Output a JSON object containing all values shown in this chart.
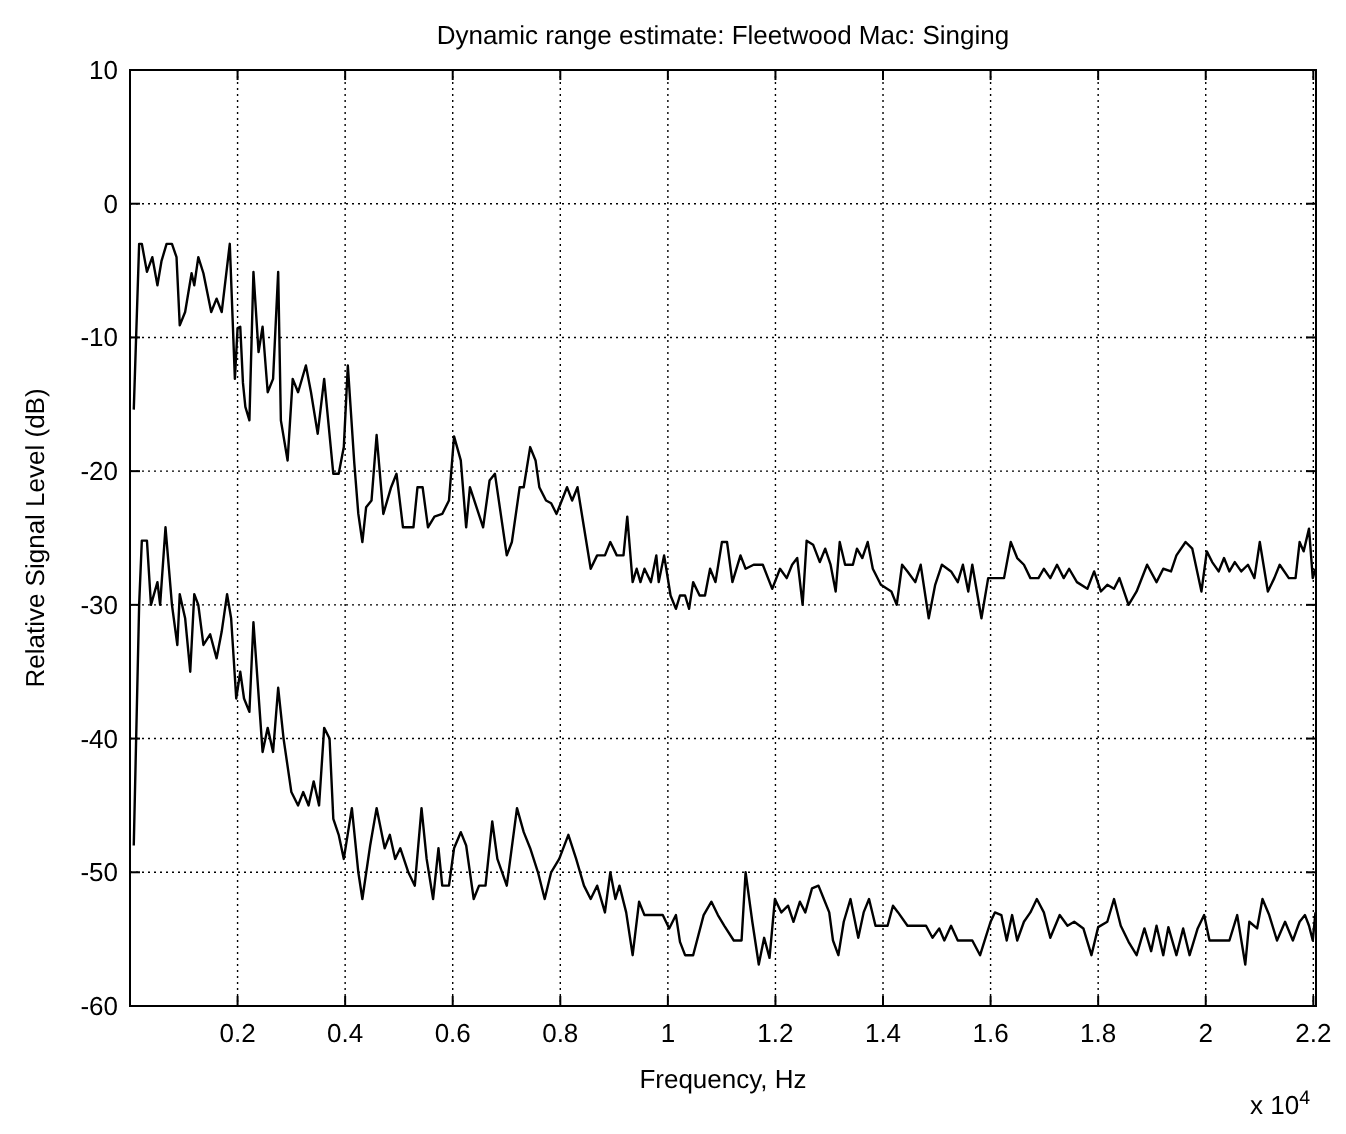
{
  "chart_data": {
    "type": "line",
    "title": "Dynamic range estimate: Fleetwood Mac: Singing",
    "xlabel": "Frequency, Hz",
    "ylabel": "Relative Signal Level (dB)",
    "annotations": [
      "x 10$^{4}$"
    ],
    "xlim": [
      0,
      2.205
    ],
    "ylim": [
      -60,
      10
    ],
    "xticks": [
      0.2,
      0.4,
      0.6,
      0.8,
      1,
      1.2,
      1.4,
      1.6,
      1.8,
      2,
      2.2
    ],
    "yticks": [
      -60,
      -50,
      -40,
      -30,
      -20,
      -10,
      0,
      10
    ],
    "grid": true,
    "line_style": "solid",
    "series": [
      {
        "color": "#000000",
        "x": [
          0.007,
          0.017,
          0.022,
          0.0315,
          0.0415,
          0.051,
          0.0585,
          0.068,
          0.078,
          0.0865,
          0.0925,
          0.1025,
          0.1145,
          0.1195,
          0.127,
          0.1365,
          0.151,
          0.161,
          0.1705,
          0.1855,
          0.195,
          0.2,
          0.205,
          0.21,
          0.2145,
          0.222,
          0.2295,
          0.239,
          0.2465,
          0.256,
          0.266,
          0.2755,
          0.2805,
          0.293,
          0.3025,
          0.3125,
          0.327,
          0.3365,
          0.349,
          0.361,
          0.378,
          0.388,
          0.3975,
          0.405,
          0.417,
          0.4245,
          0.432,
          0.439,
          0.449,
          0.4585,
          0.471,
          0.4855,
          0.4955,
          0.5075,
          0.527,
          0.5345,
          0.544,
          0.554,
          0.566,
          0.5805,
          0.593,
          0.6025,
          0.615,
          0.625,
          0.632,
          0.6565,
          0.6685,
          0.6785,
          0.7005,
          0.71,
          0.7245,
          0.732,
          0.744,
          0.754,
          0.761,
          0.7735,
          0.783,
          0.793,
          0.8125,
          0.822,
          0.832,
          0.844,
          0.8565,
          0.8685,
          0.883,
          0.893,
          0.905,
          0.9175,
          0.9245,
          0.9345,
          0.942,
          0.949,
          0.9565,
          0.9685,
          0.9785,
          0.983,
          0.993,
          1.005,
          1.015,
          1.0225,
          1.032,
          1.0395,
          1.047,
          1.059,
          1.069,
          1.0785,
          1.0885,
          1.1005,
          1.11,
          1.12,
          1.135,
          1.1445,
          1.1595,
          1.1765,
          1.194,
          1.2085,
          1.221,
          1.231,
          1.2405,
          1.2505,
          1.258,
          1.27,
          1.2825,
          1.2925,
          1.3025,
          1.312,
          1.3195,
          1.3295,
          1.344,
          1.3515,
          1.3615,
          1.3715,
          1.381,
          1.396,
          1.4155,
          1.4255,
          1.4355,
          1.4455,
          1.46,
          1.47,
          1.485,
          1.497,
          1.5095,
          1.5265,
          1.539,
          1.5485,
          1.5585,
          1.566,
          1.583,
          1.5955,
          1.625,
          1.6375,
          1.6495,
          1.662,
          1.674,
          1.689,
          1.699,
          1.711,
          1.7235,
          1.736,
          1.746,
          1.7605,
          1.78,
          1.7925,
          1.805,
          1.817,
          1.8295,
          1.8395,
          1.8565,
          1.8715,
          1.891,
          1.9085,
          1.921,
          1.9355,
          1.9455,
          1.9625,
          1.975,
          1.992,
          2.002,
          2.012,
          2.024,
          2.034,
          2.044,
          2.054,
          2.066,
          2.0785,
          2.0905,
          2.1005,
          2.1155,
          2.1275,
          2.1375,
          2.1545,
          2.167,
          2.1745,
          2.182,
          2.192,
          2.199,
          2.204
        ],
        "values": [
          -15.4,
          -3,
          -3,
          -5.1,
          -4,
          -6.1,
          -4.3,
          -3,
          -3,
          -4,
          -9.1,
          -8.1,
          -5.2,
          -6.1,
          -4,
          -5.2,
          -8.1,
          -7.1,
          -8.1,
          -3,
          -13.1,
          -9.3,
          -9.2,
          -13.4,
          -15.2,
          -16.2,
          -5.1,
          -11.1,
          -9.2,
          -14.1,
          -13.1,
          -5.1,
          -16.2,
          -19.2,
          -13.1,
          -14.1,
          -12.1,
          -14.1,
          -17.2,
          -13.1,
          -20.2,
          -20.2,
          -18.2,
          -12.1,
          -19.4,
          -23.2,
          -25.3,
          -22.7,
          -22.2,
          -17.3,
          -23.2,
          -21.2,
          -20.2,
          -24.2,
          -24.2,
          -21.2,
          -21.2,
          -24.2,
          -23.4,
          -23.2,
          -22.2,
          -17.4,
          -19.2,
          -24.2,
          -21.2,
          -24.2,
          -20.7,
          -20.2,
          -26.3,
          -25.3,
          -21.2,
          -21.2,
          -18.2,
          -19.2,
          -21.2,
          -22.2,
          -22.4,
          -23.2,
          -21.2,
          -22.2,
          -21.2,
          -24.2,
          -27.3,
          -26.3,
          -26.3,
          -25.3,
          -26.3,
          -26.3,
          -23.4,
          -28.3,
          -27.3,
          -28.3,
          -27.3,
          -28.3,
          -26.3,
          -28.3,
          -26.3,
          -29.3,
          -30.3,
          -29.3,
          -29.3,
          -30.3,
          -28.3,
          -29.3,
          -29.3,
          -27.3,
          -28.3,
          -25.3,
          -25.3,
          -28.3,
          -26.3,
          -27.3,
          -27,
          -27,
          -28.8,
          -27.3,
          -28,
          -27,
          -26.5,
          -30,
          -25.2,
          -25.5,
          -26.8,
          -25.8,
          -27,
          -29,
          -25.3,
          -27,
          -27,
          -25.8,
          -26.5,
          -25.3,
          -27.3,
          -28.5,
          -29,
          -30,
          -27,
          -27.5,
          -28.3,
          -27,
          -31,
          -28.5,
          -27,
          -27.5,
          -28.3,
          -27,
          -29,
          -27,
          -31,
          -28,
          -28,
          -25.3,
          -26.5,
          -27,
          -28,
          -28,
          -27.3,
          -28,
          -27,
          -28,
          -27.3,
          -28.3,
          -28.8,
          -27.5,
          -29,
          -28.5,
          -28.8,
          -28,
          -30,
          -29,
          -27,
          -28.3,
          -27.3,
          -27.5,
          -26.3,
          -25.3,
          -25.8,
          -29,
          -26,
          -26.8,
          -27.5,
          -26.5,
          -27.5,
          -26.8,
          -27.5,
          -27,
          -28,
          -25.3,
          -29,
          -28,
          -27,
          -28,
          -28,
          -25.3,
          -26,
          -24.3,
          -28,
          -27.3
        ]
      },
      {
        "color": "#000000",
        "x": [
          0.007,
          0.017,
          0.022,
          0.0315,
          0.039,
          0.051,
          0.056,
          0.066,
          0.078,
          0.088,
          0.0925,
          0.1025,
          0.112,
          0.1195,
          0.127,
          0.1365,
          0.149,
          0.161,
          0.1705,
          0.1805,
          0.188,
          0.1975,
          0.205,
          0.212,
          0.222,
          0.2295,
          0.2465,
          0.256,
          0.266,
          0.2755,
          0.2855,
          0.3,
          0.3125,
          0.322,
          0.332,
          0.3415,
          0.3515,
          0.361,
          0.371,
          0.378,
          0.388,
          0.3975,
          0.4125,
          0.4245,
          0.432,
          0.4465,
          0.4585,
          0.4735,
          0.483,
          0.493,
          0.5025,
          0.5175,
          0.5295,
          0.542,
          0.5515,
          0.5635,
          0.5735,
          0.5805,
          0.593,
          0.6025,
          0.615,
          0.625,
          0.639,
          0.649,
          0.661,
          0.6735,
          0.683,
          0.7005,
          0.7195,
          0.732,
          0.744,
          0.7585,
          0.771,
          0.783,
          0.798,
          0.815,
          0.8295,
          0.844,
          0.8565,
          0.8685,
          0.883,
          0.893,
          0.9025,
          0.91,
          0.9225,
          0.9345,
          0.9465,
          0.9565,
          0.9905,
          1.0025,
          1.015,
          1.0225,
          1.032,
          1.047,
          1.0665,
          1.081,
          1.093,
          1.105,
          1.1225,
          1.137,
          1.1445,
          1.157,
          1.169,
          1.179,
          1.189,
          1.199,
          1.211,
          1.2235,
          1.2335,
          1.2455,
          1.2555,
          1.268,
          1.28,
          1.29,
          1.3,
          1.307,
          1.317,
          1.327,
          1.3395,
          1.354,
          1.364,
          1.374,
          1.386,
          1.3985,
          1.4085,
          1.4185,
          1.428,
          1.4455,
          1.48,
          1.492,
          1.5045,
          1.514,
          1.5265,
          1.539,
          1.551,
          1.566,
          1.5805,
          1.5905,
          1.6,
          1.608,
          1.62,
          1.63,
          1.64,
          1.6495,
          1.662,
          1.674,
          1.686,
          1.699,
          1.711,
          1.7285,
          1.743,
          1.7555,
          1.7725,
          1.7875,
          1.8,
          1.817,
          1.8295,
          1.842,
          1.8565,
          1.8715,
          1.886,
          1.8985,
          1.9085,
          1.921,
          1.9305,
          1.9455,
          1.958,
          1.97,
          1.985,
          1.997,
          2.007,
          2.0265,
          2.044,
          2.0585,
          2.0735,
          2.081,
          2.0955,
          2.1055,
          2.118,
          2.1325,
          2.1475,
          2.162,
          2.1745,
          2.1845,
          2.192,
          2.199,
          2.204
        ],
        "values": [
          -48,
          -30,
          -25.2,
          -25.2,
          -30,
          -28.3,
          -30,
          -24.2,
          -30,
          -33,
          -29.2,
          -31,
          -35,
          -29.2,
          -30,
          -33,
          -32.2,
          -34,
          -32,
          -29.2,
          -31,
          -37,
          -35,
          -37,
          -38,
          -31.3,
          -41,
          -39.2,
          -41,
          -36.2,
          -40,
          -44,
          -45,
          -44,
          -45,
          -43.2,
          -45,
          -39.2,
          -40,
          -46,
          -47.2,
          -49,
          -45.2,
          -50,
          -52,
          -48,
          -45.2,
          -48.2,
          -47.2,
          -49,
          -48.2,
          -50,
          -51,
          -45.2,
          -49,
          -52,
          -48.2,
          -51,
          -51,
          -48.2,
          -47,
          -48,
          -52,
          -51,
          -51,
          -46.2,
          -49,
          -51,
          -45.2,
          -47,
          -48.2,
          -50,
          -52,
          -50,
          -49,
          -47.2,
          -49,
          -51,
          -52,
          -51,
          -53,
          -50,
          -52,
          -51,
          -53,
          -56.2,
          -52.2,
          -53.2,
          -53.2,
          -54.2,
          -53.2,
          -55.2,
          -56.2,
          -56.2,
          -53.2,
          -52.2,
          -53.2,
          -54,
          -55.1,
          -55.1,
          -50,
          -53.7,
          -56.9,
          -54.9,
          -56.4,
          -52,
          -53,
          -52.5,
          -53.7,
          -52.2,
          -53,
          -51.2,
          -51,
          -52,
          -53,
          -55.1,
          -56.2,
          -53.7,
          -52,
          -54.9,
          -53,
          -52,
          -54,
          -54,
          -54,
          -52.5,
          -53,
          -54,
          -54,
          -54.9,
          -54.2,
          -55.1,
          -54,
          -55.1,
          -55.1,
          -55.1,
          -56.2,
          -54.9,
          -53.7,
          -53,
          -53.2,
          -55.1,
          -53.2,
          -55.1,
          -53.7,
          -53,
          -52,
          -53,
          -54.9,
          -53.2,
          -54,
          -53.7,
          -54.2,
          -56.2,
          -54.1,
          -53.7,
          -52,
          -54,
          -55.2,
          -56.2,
          -54.2,
          -55.9,
          -54,
          -56.2,
          -54.1,
          -56.2,
          -54.2,
          -56.2,
          -54.2,
          -53.2,
          -55.1,
          -55.1,
          -55.1,
          -53.2,
          -56.9,
          -53.7,
          -54.2,
          -52,
          -53.2,
          -55.1,
          -53.7,
          -55.1,
          -53.7,
          -53.2,
          -54,
          -55.1,
          -53
        ]
      }
    ]
  }
}
